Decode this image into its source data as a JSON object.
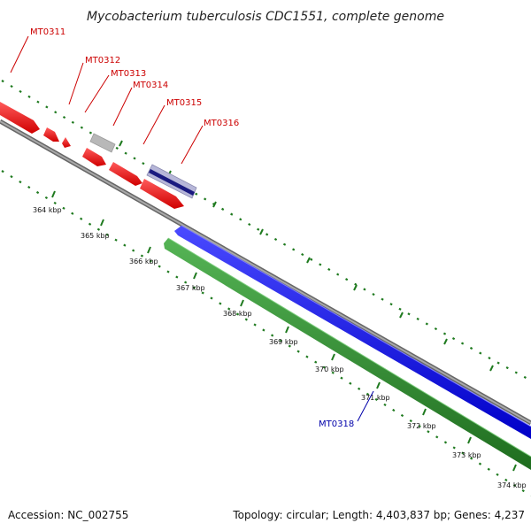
{
  "title": "Mycobacterium tuberculosis CDC1551, complete genome",
  "footer": {
    "accession": "Accession: NC_002755",
    "summary": "Topology: circular; Length: 4,403,837 bp; Genes: 4,237"
  },
  "colors": {
    "forward_gene": "#ff0000",
    "reverse_gene": "#0000ff",
    "gene_label_forward": "#cc0000",
    "gene_label_reverse": "#0000aa",
    "backbone": "#888888",
    "cds_track": "#2e8b2e",
    "tick": "#1f7a1f",
    "rna_feature": "#b0b0b0",
    "selected_feature": "#1a1a80"
  },
  "scale": {
    "unit": "kbp",
    "tick_labels": [
      "364 kbp",
      "365 kbp",
      "366 kbp",
      "367 kbp",
      "368 kbp",
      "369 kbp",
      "370 kbp",
      "371 kbp",
      "372 kbp",
      "373 kbp",
      "374 kbp"
    ]
  },
  "gene_labels": [
    {
      "name": "MT0311",
      "strand": "forward"
    },
    {
      "name": "MT0312",
      "strand": "forward"
    },
    {
      "name": "MT0313",
      "strand": "forward"
    },
    {
      "name": "MT0314",
      "strand": "forward"
    },
    {
      "name": "MT0315",
      "strand": "forward"
    },
    {
      "name": "MT0316",
      "strand": "forward"
    },
    {
      "name": "MT0318",
      "strand": "reverse"
    }
  ]
}
